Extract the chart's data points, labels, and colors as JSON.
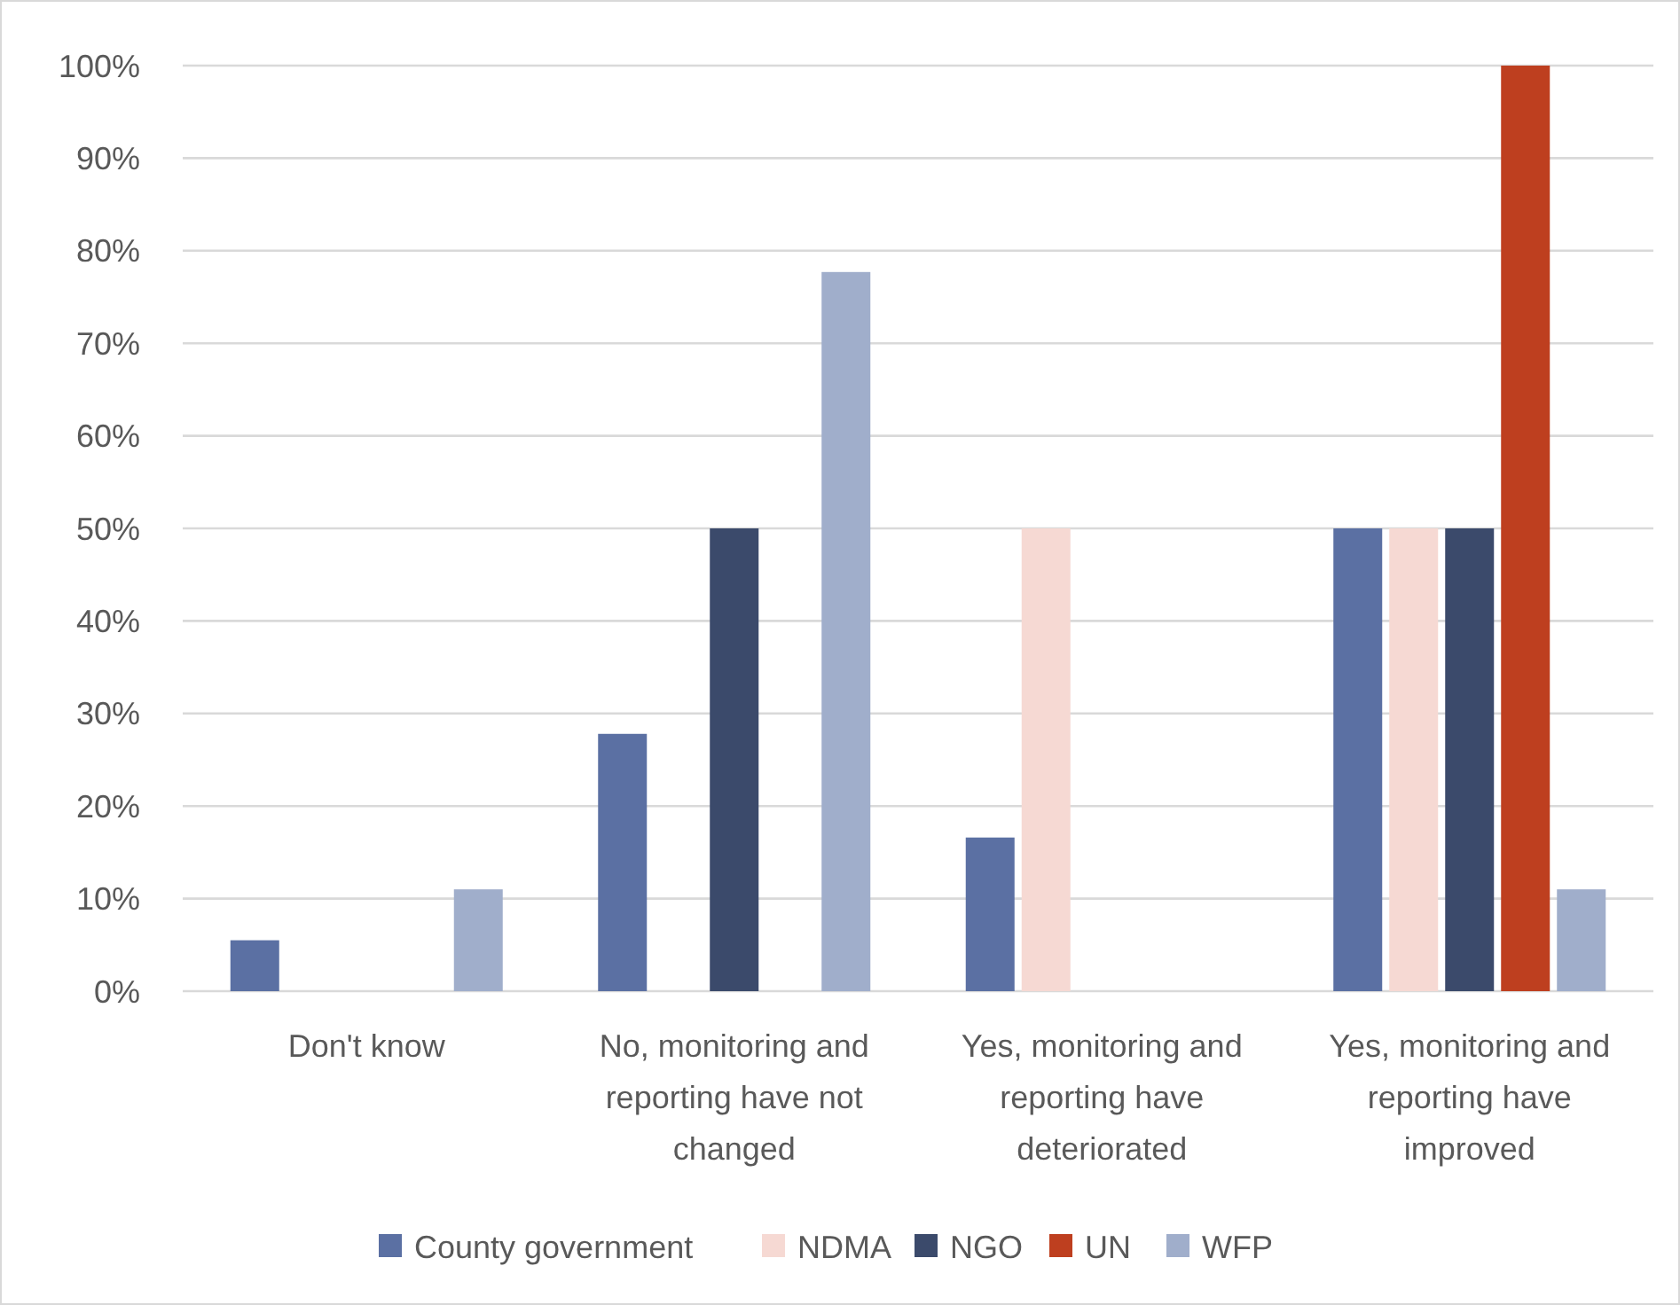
{
  "chart_data": {
    "type": "bar",
    "categories": [
      "Don't know",
      "No, monitoring and reporting have not changed",
      "Yes, monitoring and reporting have deteriorated",
      "Yes, monitoring and reporting have improved"
    ],
    "series": [
      {
        "name": "County government",
        "color": "#5b70a3",
        "values": [
          5.5,
          27.8,
          16.6,
          50
        ]
      },
      {
        "name": "NDMA",
        "color": "#f6d9d3",
        "values": [
          0,
          0,
          50,
          50
        ]
      },
      {
        "name": "NGO",
        "color": "#3b4a6b",
        "values": [
          0,
          50,
          0,
          50
        ]
      },
      {
        "name": "UN",
        "color": "#be3f1f",
        "values": [
          0,
          0,
          0,
          100
        ]
      },
      {
        "name": "WFP",
        "color": "#a0aecb",
        "values": [
          11,
          77.7,
          0,
          11
        ]
      }
    ],
    "ylim": [
      0,
      100
    ],
    "yticks": [
      {
        "value": 0,
        "label": "0%"
      },
      {
        "value": 10,
        "label": "10%"
      },
      {
        "value": 20,
        "label": "20%"
      },
      {
        "value": 30,
        "label": "30%"
      },
      {
        "value": 40,
        "label": "40%"
      },
      {
        "value": 50,
        "label": "50%"
      },
      {
        "value": 60,
        "label": "60%"
      },
      {
        "value": 70,
        "label": "70%"
      },
      {
        "value": 80,
        "label": "80%"
      },
      {
        "value": 90,
        "label": "90%"
      },
      {
        "value": 100,
        "label": "100%"
      }
    ],
    "grid": "y",
    "legend": "bottom"
  }
}
